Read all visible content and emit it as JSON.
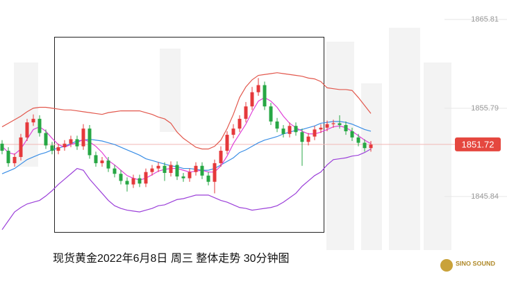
{
  "chart_data": {
    "type": "candlestick",
    "caption": "现货黄金2022年6月8日 周三 整体走势  30分钟图",
    "logo": "SINO SOUND",
    "ylim": [
      1836.2,
      1868.0
    ],
    "yticks": [
      1845.84,
      1855.79,
      1865.81
    ],
    "last_price": 1851.72,
    "up_color": "#e5393b",
    "down_color": "#27a744",
    "open": [
      1851.8,
      1851.0,
      1849.6,
      1850.3,
      1852.5,
      1854.2,
      1854.6,
      1853.0,
      1851.6,
      1851.0,
      1851.4,
      1851.8,
      1852.3,
      1851.5,
      1853.5,
      1850.5,
      1849.6,
      1849.9,
      1849.0,
      1848.4,
      1847.6,
      1847.2,
      1847.9,
      1847.3,
      1848.6,
      1849.0,
      1849.3,
      1848.5,
      1849.4,
      1848.1,
      1847.9,
      1848.6,
      1849.3,
      1848.2,
      1847.5,
      1849.6,
      1851.0,
      1852.8,
      1853.5,
      1854.6,
      1856.0,
      1857.6,
      1858.4,
      1856.0,
      1854.3,
      1853.5,
      1852.9,
      1853.8,
      1853.1,
      1852.0,
      1852.6,
      1853.4,
      1853.6,
      1854.0,
      1854.1,
      1853.9,
      1853.2,
      1852.5,
      1851.9,
      1851.3
    ],
    "high": [
      1852.2,
      1851.4,
      1850.7,
      1852.9,
      1854.6,
      1855.1,
      1855.0,
      1853.4,
      1852.0,
      1851.8,
      1852.2,
      1852.7,
      1852.7,
      1854.0,
      1853.9,
      1850.9,
      1850.3,
      1850.3,
      1849.4,
      1848.8,
      1848.0,
      1848.3,
      1848.3,
      1849.0,
      1849.4,
      1849.7,
      1849.7,
      1849.8,
      1849.8,
      1848.5,
      1849.0,
      1849.7,
      1849.7,
      1848.6,
      1850.0,
      1851.5,
      1853.2,
      1854.0,
      1855.0,
      1856.5,
      1858.2,
      1859.2,
      1858.8,
      1856.4,
      1854.7,
      1853.9,
      1854.2,
      1854.2,
      1853.5,
      1853.0,
      1853.8,
      1854.0,
      1854.4,
      1854.5,
      1855.0,
      1854.3,
      1853.6,
      1852.9,
      1852.3,
      1852.1
    ],
    "low": [
      1850.6,
      1849.2,
      1849.2,
      1849.9,
      1852.1,
      1853.8,
      1852.6,
      1851.2,
      1850.6,
      1850.6,
      1851.0,
      1851.4,
      1851.1,
      1851.1,
      1850.1,
      1849.2,
      1849.2,
      1848.6,
      1848.0,
      1847.2,
      1846.4,
      1846.8,
      1846.9,
      1846.9,
      1848.2,
      1848.6,
      1847.6,
      1848.1,
      1847.7,
      1847.5,
      1847.5,
      1848.2,
      1847.8,
      1847.1,
      1846.2,
      1849.2,
      1850.6,
      1852.4,
      1853.1,
      1854.2,
      1855.6,
      1857.2,
      1855.6,
      1853.9,
      1853.1,
      1852.5,
      1852.5,
      1852.7,
      1849.3,
      1851.6,
      1852.2,
      1853.0,
      1853.2,
      1853.6,
      1853.5,
      1852.8,
      1852.1,
      1851.5,
      1850.9,
      1850.9
    ],
    "close": [
      1851.0,
      1849.6,
      1850.3,
      1852.5,
      1854.2,
      1854.6,
      1853.0,
      1851.6,
      1851.0,
      1851.4,
      1851.8,
      1852.3,
      1851.5,
      1853.5,
      1850.5,
      1849.6,
      1849.9,
      1849.0,
      1848.4,
      1847.6,
      1847.2,
      1847.9,
      1847.3,
      1848.6,
      1849.0,
      1849.3,
      1848.5,
      1849.4,
      1848.1,
      1847.9,
      1848.6,
      1849.3,
      1848.2,
      1847.5,
      1849.6,
      1851.0,
      1852.8,
      1853.5,
      1854.6,
      1856.0,
      1857.6,
      1858.4,
      1856.0,
      1854.3,
      1853.5,
      1852.9,
      1853.8,
      1853.1,
      1852.0,
      1852.6,
      1853.4,
      1853.6,
      1854.0,
      1854.1,
      1853.9,
      1853.2,
      1852.5,
      1851.9,
      1851.3,
      1851.7
    ],
    "series": [
      {
        "color": "#e2574c",
        "values": [
          1853.7,
          1854.1,
          1854.5,
          1854.9,
          1855.4,
          1855.8,
          1855.9,
          1855.9,
          1855.8,
          1855.7,
          1855.6,
          1855.6,
          1855.5,
          1855.4,
          1855.3,
          1855.2,
          1855.1,
          1855.3,
          1855.4,
          1855.5,
          1855.5,
          1855.5,
          1855.5,
          1855.3,
          1855.1,
          1854.8,
          1854.6,
          1854.1,
          1853.1,
          1852.4,
          1851.9,
          1851.4,
          1851.2,
          1851.2,
          1851.5,
          1852.2,
          1853.5,
          1855.1,
          1857.0,
          1858.2,
          1859.0,
          1859.5,
          1859.6,
          1859.7,
          1859.8,
          1859.7,
          1859.6,
          1859.5,
          1859.4,
          1859.2,
          1859.1,
          1858.8,
          1858.1,
          1858.0,
          1857.9,
          1857.9,
          1857.8,
          1857.0,
          1856.1,
          1855.2
        ]
      },
      {
        "color": "#3a8ee6",
        "values": [
          1848.4,
          1848.7,
          1849.0,
          1849.5,
          1850.0,
          1850.3,
          1850.6,
          1850.8,
          1851.1,
          1851.3,
          1851.5,
          1851.8,
          1852.1,
          1852.2,
          1852.3,
          1852.2,
          1852.1,
          1851.9,
          1851.7,
          1851.4,
          1851.1,
          1850.8,
          1850.5,
          1850.1,
          1849.9,
          1849.7,
          1849.5,
          1849.3,
          1849.2,
          1849.0,
          1849.0,
          1848.9,
          1848.8,
          1848.8,
          1849.0,
          1849.4,
          1849.8,
          1850.2,
          1850.8,
          1851.1,
          1851.5,
          1851.9,
          1852.2,
          1852.4,
          1852.6,
          1852.9,
          1853.1,
          1853.3,
          1853.4,
          1853.6,
          1853.8,
          1854.1,
          1854.2,
          1854.3,
          1854.3,
          1854.2,
          1854.0,
          1853.7,
          1853.4,
          1853.2
        ]
      },
      {
        "color": "#9b3fd9",
        "values": [
          1842.1,
          1843.1,
          1844.1,
          1844.6,
          1845.0,
          1845.2,
          1845.4,
          1845.9,
          1846.5,
          1847.2,
          1847.8,
          1848.4,
          1849.0,
          1848.8,
          1847.8,
          1847.0,
          1846.2,
          1845.4,
          1844.8,
          1844.5,
          1844.3,
          1844.2,
          1844.1,
          1844.3,
          1844.5,
          1844.8,
          1844.9,
          1845.2,
          1845.5,
          1845.6,
          1845.8,
          1846.0,
          1846.0,
          1846.0,
          1845.7,
          1845.4,
          1845.2,
          1844.9,
          1844.6,
          1844.5,
          1844.3,
          1844.4,
          1844.5,
          1844.6,
          1844.8,
          1845.2,
          1845.7,
          1846.2,
          1847.0,
          1847.6,
          1848.2,
          1848.6,
          1849.4,
          1850.0,
          1850.1,
          1850.2,
          1850.4,
          1850.5,
          1850.8,
          1851.2
        ]
      },
      {
        "color": "#e040d8",
        "values": [
          1851.5,
          1850.8,
          1850.6,
          1851.2,
          1852.3,
          1853.4,
          1853.7,
          1853.2,
          1852.4,
          1851.7,
          1851.4,
          1851.7,
          1851.9,
          1852.3,
          1852.0,
          1851.5,
          1850.8,
          1849.9,
          1849.4,
          1848.8,
          1848.2,
          1847.9,
          1847.7,
          1847.9,
          1848.3,
          1848.7,
          1848.9,
          1849.0,
          1849.0,
          1848.8,
          1848.6,
          1848.7,
          1848.8,
          1848.6,
          1848.6,
          1849.3,
          1850.4,
          1851.8,
          1852.9,
          1854.0,
          1855.4,
          1856.6,
          1857.0,
          1856.6,
          1855.9,
          1854.9,
          1854.1,
          1853.6,
          1853.2,
          1852.9,
          1852.9,
          1853.1,
          1853.4,
          1853.7,
          1853.8,
          1853.6,
          1853.2,
          1852.7,
          1852.2,
          1851.8
        ]
      }
    ]
  }
}
